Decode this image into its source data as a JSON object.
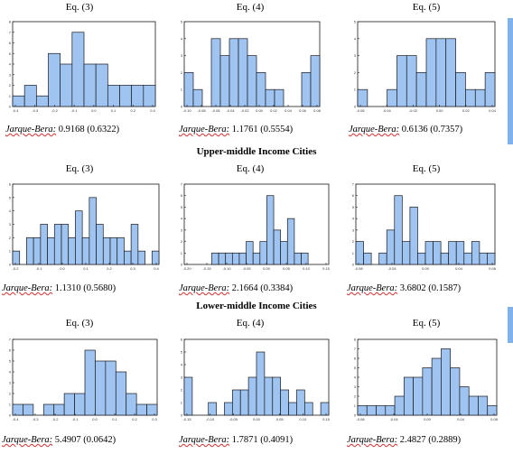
{
  "colors": {
    "bar_fill": "#9fc4f2",
    "bar_stroke": "#1a1a1a",
    "frame": "#1a1a1a",
    "wavy_underline": "#d03030"
  },
  "equations": [
    "Eq. (3)",
    "Eq. (4)",
    "Eq. (5)"
  ],
  "sections": {
    "upper": "Upper-middle Income Cities",
    "lower": "Lower-middle Income Cities"
  },
  "jarque_bera_label": "Jarque-Bera:",
  "chart_data": [
    {
      "type": "bar",
      "group": "top",
      "equation": "Eq. (3)",
      "values": [
        1,
        2,
        1,
        5,
        4,
        7,
        4,
        4,
        2,
        2,
        2,
        2
      ],
      "ylim": [
        0,
        8
      ],
      "y_ticks": [
        "0",
        "1",
        "2",
        "3",
        "4",
        "5",
        "6",
        "7",
        "8"
      ],
      "x_ticks": [
        "-0.4",
        "-0.3",
        "-0.2",
        "-0.1",
        "0.0",
        "0.1",
        "0.2",
        "0.3"
      ],
      "jb_value": "0.9168 (0.6322)"
    },
    {
      "type": "bar",
      "group": "top",
      "equation": "Eq. (4)",
      "values": [
        2,
        1,
        0,
        4,
        3,
        4,
        4,
        3,
        2,
        1,
        1,
        0,
        0,
        2,
        3
      ],
      "ylim": [
        0,
        5
      ],
      "y_ticks": [
        "0",
        "1",
        "2",
        "3",
        "4",
        "5"
      ],
      "x_ticks": [
        "-0.10",
        "-0.08",
        "-0.06",
        "-0.04",
        "-0.02",
        "0.00",
        "0.02",
        "0.04",
        "0.06",
        "0.08"
      ],
      "jb_value": "1.1761 (0.5554)"
    },
    {
      "type": "bar",
      "group": "top",
      "equation": "Eq. (5)",
      "values": [
        1,
        0,
        0,
        1,
        3,
        3,
        2,
        4,
        4,
        4,
        2,
        1,
        1,
        2
      ],
      "ylim": [
        0,
        5
      ],
      "y_ticks": [
        "0",
        "1",
        "2",
        "3",
        "4",
        "5"
      ],
      "x_ticks": [
        "-0.06",
        "-0.04",
        "-0.02",
        "0.00",
        "0.02",
        "0.04"
      ],
      "jb_value": "0.6136 (0.7357)"
    },
    {
      "type": "bar",
      "group": "upper",
      "equation": "Eq. (3)",
      "values": [
        1,
        0,
        2,
        2,
        3,
        2,
        3,
        3,
        2,
        4,
        2,
        5,
        3,
        2,
        2,
        2,
        1,
        3,
        1,
        0,
        1
      ],
      "ylim": [
        0,
        6
      ],
      "y_ticks": [
        "0",
        "1",
        "2",
        "3",
        "4",
        "5",
        "6"
      ],
      "x_ticks": [
        "-0.2",
        "-0.1",
        "0.0",
        "0.1",
        "0.2",
        "0.3",
        "0.4"
      ],
      "jb_value": "1.1310 (0.5680)"
    },
    {
      "type": "bar",
      "group": "upper",
      "equation": "Eq. (4)",
      "values": [
        0,
        0,
        0,
        0,
        1,
        1,
        1,
        1,
        1,
        2,
        1,
        2,
        6,
        3,
        2,
        4,
        1,
        1,
        0,
        0,
        0
      ],
      "ylim": [
        0,
        7
      ],
      "y_ticks": [
        "0",
        "1",
        "2",
        "3",
        "4",
        "5",
        "6",
        "7"
      ],
      "x_ticks": [
        "-0.20",
        "-0.15",
        "-0.10",
        "-0.05",
        "0.00",
        "0.05",
        "0.10",
        "0.15"
      ],
      "jb_value": "2.1664 (0.3384)"
    },
    {
      "type": "bar",
      "group": "upper",
      "equation": "Eq. (5)",
      "values": [
        2,
        1,
        0,
        1,
        3,
        6,
        2,
        5,
        1,
        2,
        2,
        1,
        2,
        2,
        1,
        2,
        1,
        1
      ],
      "ylim": [
        0,
        7
      ],
      "y_ticks": [
        "0",
        "1",
        "2",
        "3",
        "4",
        "5",
        "6",
        "7"
      ],
      "x_ticks": [
        "-0.08",
        "-0.04",
        "0.00",
        "0.04",
        "0.08"
      ],
      "jb_value": "3.6802 (0.1587)"
    },
    {
      "type": "bar",
      "group": "lower",
      "equation": "Eq. (3)",
      "values": [
        1,
        1,
        0,
        1,
        1,
        2,
        2,
        6,
        5,
        5,
        4,
        2,
        1,
        1
      ],
      "ylim": [
        0,
        7
      ],
      "y_ticks": [
        "0",
        "1",
        "2",
        "3",
        "4",
        "5",
        "6",
        "7"
      ],
      "x_ticks": [
        "-0.4",
        "-0.3",
        "-0.2",
        "-0.1",
        "0.0",
        "0.1",
        "0.2",
        "0.3"
      ],
      "jb_value": "5.4907 (0.0642)"
    },
    {
      "type": "bar",
      "group": "lower",
      "equation": "Eq. (4)",
      "values": [
        3,
        0,
        0,
        1,
        0,
        1,
        2,
        2,
        3,
        5,
        3,
        3,
        2,
        1,
        2,
        1,
        0,
        1
      ],
      "ylim": [
        0,
        6
      ],
      "y_ticks": [
        "0",
        "1",
        "2",
        "3",
        "4",
        "5",
        "6"
      ],
      "x_ticks": [
        "-0.15",
        "-0.10",
        "-0.05",
        "0.00",
        "0.05",
        "0.10",
        "0.15"
      ],
      "jb_value": "1.7871 (0.4091)"
    },
    {
      "type": "bar",
      "group": "lower",
      "equation": "Eq. (5)",
      "values": [
        1,
        1,
        1,
        1,
        2,
        4,
        4,
        5,
        6,
        7,
        5,
        3,
        2,
        2,
        1
      ],
      "ylim": [
        0,
        8
      ],
      "y_ticks": [
        "0",
        "1",
        "2",
        "3",
        "4",
        "5",
        "6",
        "7",
        "8"
      ],
      "x_ticks": [
        "-0.08",
        "-0.04",
        "0.00",
        "0.04",
        "0.08"
      ],
      "jb_value": "2.4827 (0.2889)"
    }
  ]
}
